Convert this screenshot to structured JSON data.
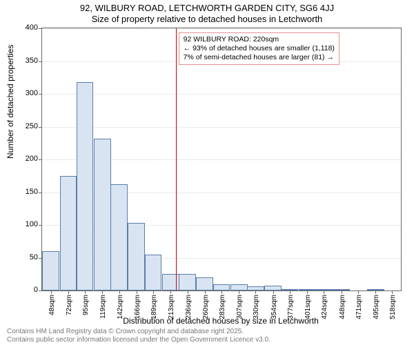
{
  "title_line1": "92, WILBURY ROAD, LETCHWORTH GARDEN CITY, SG6 4JJ",
  "title_line2": "Size of property relative to detached houses in Letchworth",
  "y_label": "Number of detached properties",
  "x_label": "Distribution of detached houses by size in Letchworth",
  "footer_line1": "Contains HM Land Registry data © Crown copyright and database right 2025.",
  "footer_line2": "Contains public sector information licensed under the Open Government Licence v3.0.",
  "chart": {
    "type": "histogram",
    "ylim": [
      0,
      400
    ],
    "yticks": [
      0,
      50,
      100,
      150,
      200,
      250,
      300,
      350,
      400
    ],
    "xlim_sqm": [
      36,
      530
    ],
    "x_tick_labels": [
      "48sqm",
      "72sqm",
      "95sqm",
      "119sqm",
      "142sqm",
      "166sqm",
      "189sqm",
      "213sqm",
      "236sqm",
      "260sqm",
      "283sqm",
      "307sqm",
      "330sqm",
      "354sqm",
      "377sqm",
      "401sqm",
      "424sqm",
      "448sqm",
      "471sqm",
      "495sqm",
      "518sqm"
    ],
    "x_tick_centers_sqm": [
      48,
      72,
      95,
      119,
      142,
      166,
      189,
      213,
      236,
      260,
      283,
      307,
      330,
      354,
      377,
      401,
      424,
      448,
      471,
      495,
      518
    ],
    "bar_width_sqm": 23.5,
    "bars": [
      {
        "center_sqm": 48,
        "count": 60
      },
      {
        "center_sqm": 72,
        "count": 175
      },
      {
        "center_sqm": 95,
        "count": 318
      },
      {
        "center_sqm": 119,
        "count": 232
      },
      {
        "center_sqm": 142,
        "count": 162
      },
      {
        "center_sqm": 166,
        "count": 103
      },
      {
        "center_sqm": 189,
        "count": 55
      },
      {
        "center_sqm": 213,
        "count": 25
      },
      {
        "center_sqm": 236,
        "count": 25
      },
      {
        "center_sqm": 260,
        "count": 20
      },
      {
        "center_sqm": 283,
        "count": 10
      },
      {
        "center_sqm": 307,
        "count": 9
      },
      {
        "center_sqm": 330,
        "count": 6
      },
      {
        "center_sqm": 354,
        "count": 7
      },
      {
        "center_sqm": 377,
        "count": 2
      },
      {
        "center_sqm": 401,
        "count": 2
      },
      {
        "center_sqm": 424,
        "count": 1
      },
      {
        "center_sqm": 448,
        "count": 2
      },
      {
        "center_sqm": 471,
        "count": 0
      },
      {
        "center_sqm": 495,
        "count": 2
      },
      {
        "center_sqm": 518,
        "count": 0
      }
    ],
    "bar_fill": "#d9e4f2",
    "bar_border": "#5b7ca8",
    "grid_color": "#aaaaaa",
    "reference_line": {
      "value_sqm": 220,
      "color": "#cc0000"
    },
    "annotation": {
      "line1": "92 WILBURY ROAD: 220sqm",
      "line2": "← 93% of detached houses are smaller (1,118)",
      "line3": "7% of semi-detached houses are larger (81) →",
      "border_color": "#e89090"
    }
  }
}
